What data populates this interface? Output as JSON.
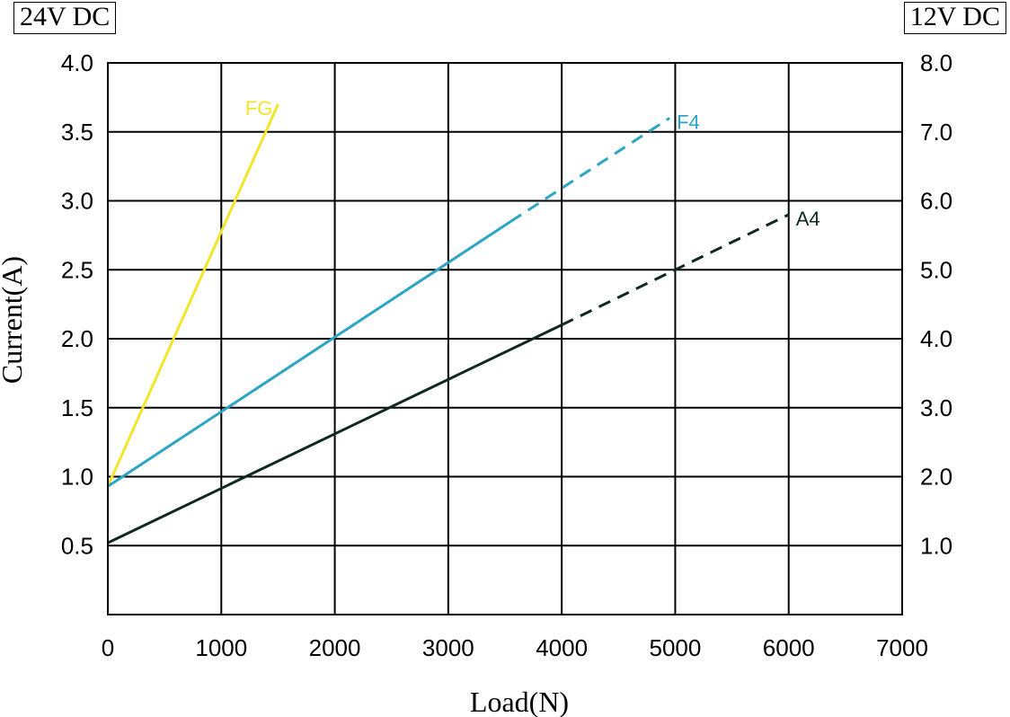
{
  "header": {
    "left_label": "24V DC",
    "right_label": "12V DC"
  },
  "chart_data": {
    "type": "line",
    "title": "",
    "xlabel": "Load(N)",
    "ylabel": "Current(A)",
    "xlim": [
      0,
      7000
    ],
    "ylim": [
      0,
      4.0
    ],
    "y2lim": [
      0,
      8.0
    ],
    "x_ticks": [
      "0",
      "1000",
      "2000",
      "3000",
      "4000",
      "5000",
      "6000",
      "7000"
    ],
    "y_ticks": [
      "0.5",
      "1.0",
      "1.5",
      "2.0",
      "2.5",
      "3.0",
      "3.5",
      "4.0"
    ],
    "y2_ticks": [
      "1.0",
      "2.0",
      "3.0",
      "4.0",
      "5.0",
      "6.0",
      "7.0",
      "8.0"
    ],
    "grid": true,
    "series": [
      {
        "name": "FG",
        "color": "#f3e52b",
        "solid": {
          "x": [
            0,
            1500
          ],
          "y": [
            0.93,
            3.7
          ]
        }
      },
      {
        "name": "F4",
        "color": "#2ba5c3",
        "solid": {
          "x": [
            0,
            3550
          ],
          "y": [
            0.93,
            2.85
          ]
        },
        "dashed": {
          "x": [
            3550,
            4950
          ],
          "y": [
            2.85,
            3.6
          ]
        }
      },
      {
        "name": "A4",
        "color": "#0d2a1c",
        "solid": {
          "x": [
            0,
            4000
          ],
          "y": [
            0.52,
            2.1
          ]
        },
        "dashed": {
          "x": [
            4000,
            6000
          ],
          "y": [
            2.1,
            2.9
          ]
        }
      }
    ]
  }
}
